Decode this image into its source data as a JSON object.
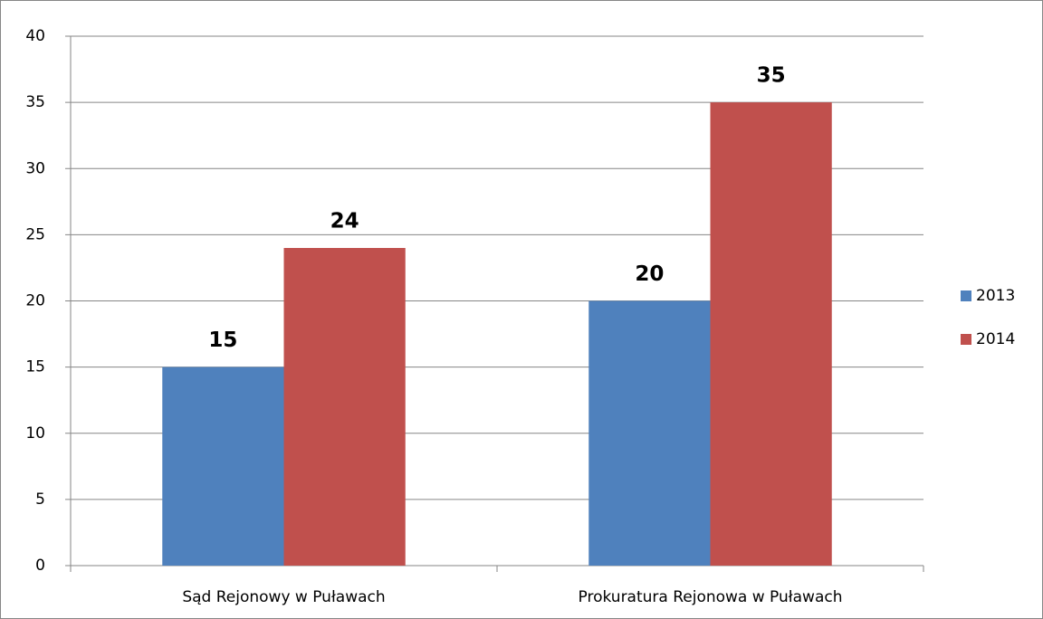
{
  "chart_data": {
    "type": "bar",
    "categories": [
      "Sąd Rejonowy w Puławach",
      "Prokuratura Rejonowa w Puławach"
    ],
    "series": [
      {
        "name": "2013",
        "color": "#4f81bd",
        "values": [
          15,
          20
        ]
      },
      {
        "name": "2014",
        "color": "#c0504d",
        "values": [
          24,
          35
        ]
      }
    ],
    "ylim": [
      0,
      40
    ],
    "yticks": [
      0,
      5,
      10,
      15,
      20,
      25,
      30,
      35,
      40
    ],
    "grid": true,
    "legend": "right"
  }
}
